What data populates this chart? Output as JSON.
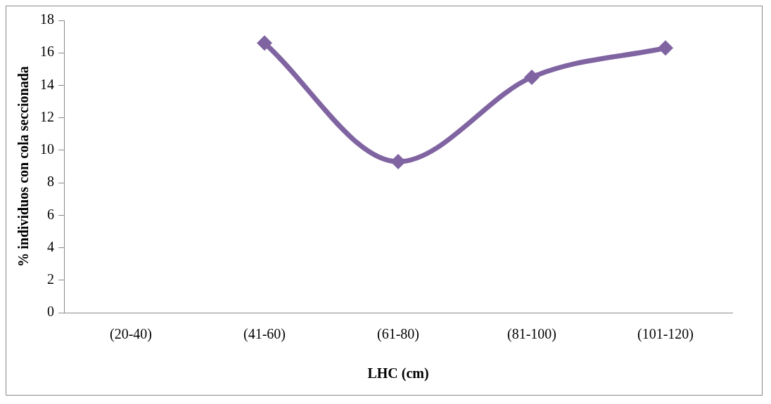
{
  "chart_data": {
    "type": "line",
    "xlabel": "LHC (cm)",
    "ylabel": "% individuos con cola seccionada",
    "categories": [
      "(20-40)",
      "(41-60)",
      "(61-80)",
      "(81-100)",
      "(101-120)"
    ],
    "series": [
      {
        "color": "#8064a2",
        "values": [
          null,
          16.6,
          9.3,
          14.5,
          16.3
        ]
      }
    ],
    "ylim": [
      0,
      18
    ],
    "yticks": [
      0,
      2,
      4,
      6,
      8,
      10,
      12,
      14,
      16,
      18
    ],
    "grid": false,
    "legend": false,
    "marker": "diamond",
    "line_style": "solid"
  }
}
